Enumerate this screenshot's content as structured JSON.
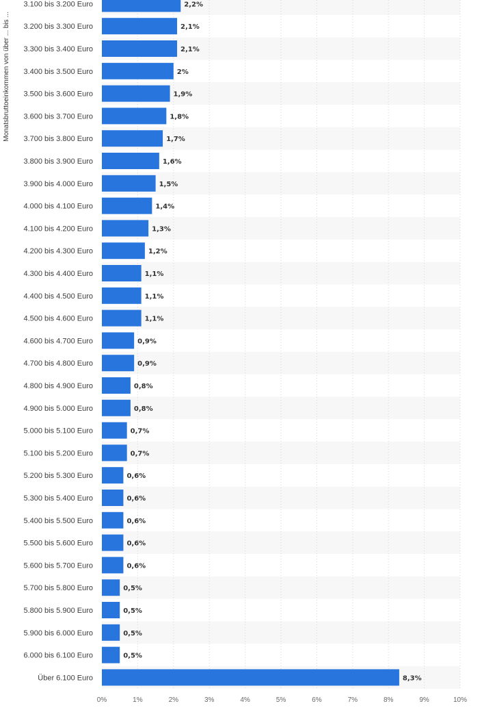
{
  "chart_data": {
    "type": "bar",
    "orientation": "horizontal",
    "ylabel": "Monatsbruttoeinkommen von über ... bis ...",
    "xlabel": "",
    "xlim": [
      0,
      10
    ],
    "x_ticks": [
      "0%",
      "1%",
      "2%",
      "3%",
      "4%",
      "5%",
      "6%",
      "7%",
      "8%",
      "9%",
      "10%"
    ],
    "grid": true,
    "bar_color": "#2876dd",
    "categories": [
      "3.100 bis 3.200 Euro",
      "3.200 bis 3.300 Euro",
      "3.300 bis 3.400 Euro",
      "3.400 bis 3.500 Euro",
      "3.500 bis 3.600 Euro",
      "3.600 bis 3.700 Euro",
      "3.700 bis 3.800 Euro",
      "3.800 bis 3.900 Euro",
      "3.900 bis 4.000 Euro",
      "4.000 bis 4.100 Euro",
      "4.100 bis 4.200 Euro",
      "4.200 bis 4.300 Euro",
      "4.300 bis 4.400 Euro",
      "4.400 bis 4.500 Euro",
      "4.500 bis 4.600 Euro",
      "4.600 bis 4.700 Euro",
      "4.700 bis 4.800 Euro",
      "4.800 bis 4.900 Euro",
      "4.900 bis 5.000 Euro",
      "5.000 bis 5.100 Euro",
      "5.100 bis 5.200 Euro",
      "5.200 bis 5.300 Euro",
      "5.300 bis 5.400 Euro",
      "5.400 bis 5.500 Euro",
      "5.500 bis 5.600 Euro",
      "5.600 bis 5.700 Euro",
      "5.700 bis 5.800 Euro",
      "5.800 bis 5.900 Euro",
      "5.900 bis 6.000 Euro",
      "6.000 bis 6.100 Euro",
      "Über 6.100 Euro"
    ],
    "values": [
      2.2,
      2.1,
      2.1,
      2.0,
      1.9,
      1.8,
      1.7,
      1.6,
      1.5,
      1.4,
      1.3,
      1.2,
      1.1,
      1.1,
      1.1,
      0.9,
      0.9,
      0.8,
      0.8,
      0.7,
      0.7,
      0.6,
      0.6,
      0.6,
      0.6,
      0.6,
      0.5,
      0.5,
      0.5,
      0.5,
      8.3
    ],
    "value_labels": [
      "2,2%",
      "2,1%",
      "2,1%",
      "2%",
      "1,9%",
      "1,8%",
      "1,7%",
      "1,6%",
      "1,5%",
      "1,4%",
      "1,3%",
      "1,2%",
      "1,1%",
      "1,1%",
      "1,1%",
      "0,9%",
      "0,9%",
      "0,8%",
      "0,8%",
      "0,7%",
      "0,7%",
      "0,6%",
      "0,6%",
      "0,6%",
      "0,6%",
      "0,6%",
      "0,5%",
      "0,5%",
      "0,5%",
      "0,5%",
      "8,3%"
    ]
  }
}
